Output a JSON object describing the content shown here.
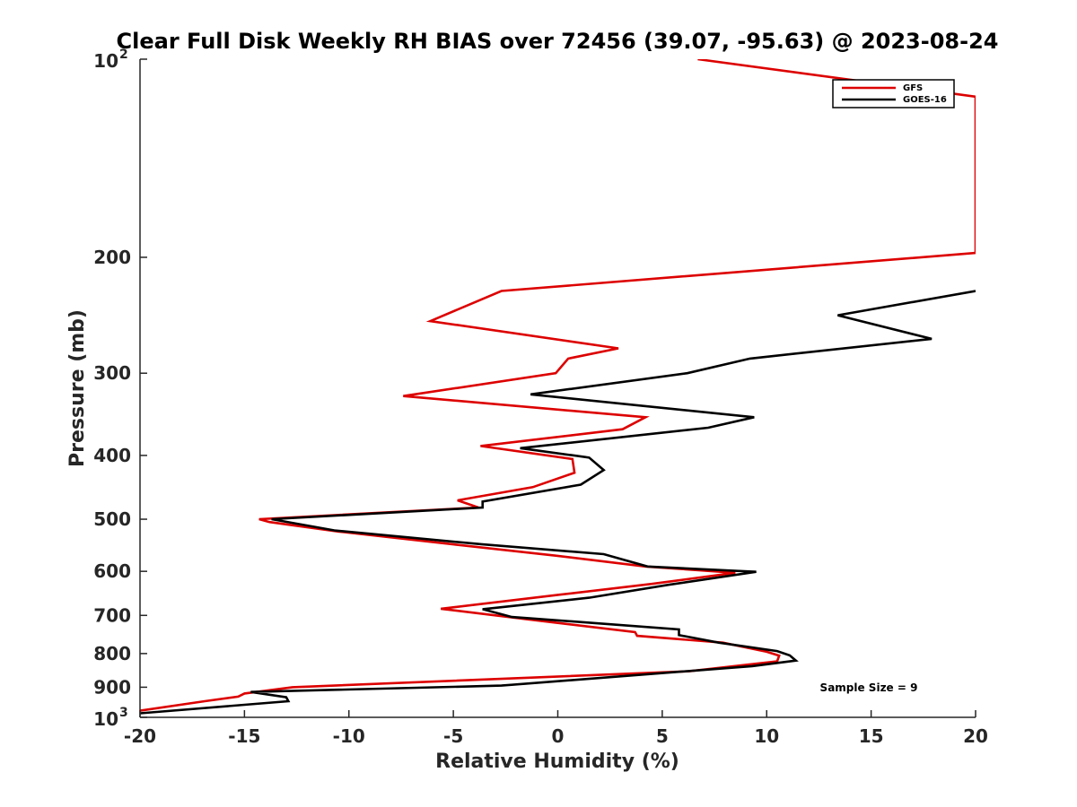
{
  "chart_data": {
    "type": "line",
    "title": "Clear Full Disk Weekly RH BIAS over 72456 (39.07, -95.63) @ 2023-08-24",
    "xlabel": "Relative Humidity (%)",
    "ylabel": "Pressure (mb)",
    "xlim": [
      -20,
      20
    ],
    "ylim": [
      100,
      1000
    ],
    "yscale": "log",
    "yreversed": true,
    "grid": false,
    "x_ticks": [
      -20,
      -15,
      -10,
      -5,
      0,
      5,
      10,
      15,
      20
    ],
    "x_tick_labels": [
      "-20",
      "-15",
      "-10",
      "-5",
      "0",
      "5",
      "10",
      "15",
      "20"
    ],
    "y_ticks": [
      200,
      300,
      400,
      500,
      600,
      700,
      800,
      900
    ],
    "y_tick_labels": [
      "200",
      "300",
      "400",
      "500",
      "600",
      "700",
      "800",
      "900"
    ],
    "y_limit_labels": [
      {
        "value": 100,
        "base": "10",
        "exp": "2"
      },
      {
        "value": 1000,
        "base": "10",
        "exp": "3"
      }
    ],
    "legend": {
      "position": "top-right",
      "entries": [
        "GFS",
        "GOES-16"
      ]
    },
    "annotation": "Sample Size = 9",
    "series": [
      {
        "name": "GFS",
        "color": "#dd0000",
        "points": [
          [
            6.7,
            100
          ],
          [
            20,
            114
          ],
          [
            20,
            197
          ],
          [
            -2.7,
            225
          ],
          [
            -6.1,
            250
          ],
          [
            2.9,
            275
          ],
          [
            0.5,
            285
          ],
          [
            -0.1,
            300
          ],
          [
            -7.4,
            325
          ],
          [
            4.2,
            350
          ],
          [
            3.1,
            365
          ],
          [
            -3.7,
            387
          ],
          [
            0.7,
            405
          ],
          [
            0.8,
            425
          ],
          [
            -1.2,
            447
          ],
          [
            -4.8,
            468
          ],
          [
            -3.8,
            480
          ],
          [
            -14.3,
            500
          ],
          [
            -13.8,
            505
          ],
          [
            -10.5,
            522
          ],
          [
            -5.0,
            546
          ],
          [
            -0.1,
            568
          ],
          [
            4.2,
            590
          ],
          [
            8.5,
            603
          ],
          [
            4.5,
            627
          ],
          [
            0.1,
            651
          ],
          [
            -5.6,
            684
          ],
          [
            -1.4,
            710
          ],
          [
            3.7,
            742
          ],
          [
            3.8,
            752
          ],
          [
            7.9,
            770
          ],
          [
            10.0,
            795
          ],
          [
            10.6,
            806
          ],
          [
            10.5,
            822
          ],
          [
            6.3,
            851
          ],
          [
            -12.7,
            900
          ],
          [
            -15.0,
            920
          ],
          [
            -15.3,
            930
          ],
          [
            -16.9,
            945
          ],
          [
            -20,
            977
          ]
        ]
      },
      {
        "name": "GOES-16",
        "color": "#000000",
        "points": [
          [
            20,
            225
          ],
          [
            13.4,
            245
          ],
          [
            17.9,
            266
          ],
          [
            9.2,
            285
          ],
          [
            6.2,
            300
          ],
          [
            -1.3,
            323
          ],
          [
            9.4,
            350
          ],
          [
            7.2,
            363
          ],
          [
            -1.8,
            390
          ],
          [
            1.5,
            403
          ],
          [
            2.2,
            421
          ],
          [
            1.1,
            443
          ],
          [
            -3.6,
            470
          ],
          [
            -3.6,
            480
          ],
          [
            -13.7,
            500
          ],
          [
            -10.7,
            520
          ],
          [
            -3.6,
            546
          ],
          [
            2.2,
            565
          ],
          [
            4.3,
            590
          ],
          [
            9.5,
            601
          ],
          [
            5.3,
            629
          ],
          [
            1.5,
            658
          ],
          [
            -3.6,
            685
          ],
          [
            -2.2,
            704
          ],
          [
            2.0,
            720
          ],
          [
            5.8,
            735
          ],
          [
            5.8,
            750
          ],
          [
            7.7,
            770
          ],
          [
            10.5,
            793
          ],
          [
            11.1,
            805
          ],
          [
            11.4,
            820
          ],
          [
            9.3,
            836
          ],
          [
            -2.7,
            895
          ],
          [
            -14.7,
            915
          ],
          [
            -13.0,
            932
          ],
          [
            -12.9,
            945
          ],
          [
            -20,
            986
          ]
        ]
      }
    ]
  }
}
